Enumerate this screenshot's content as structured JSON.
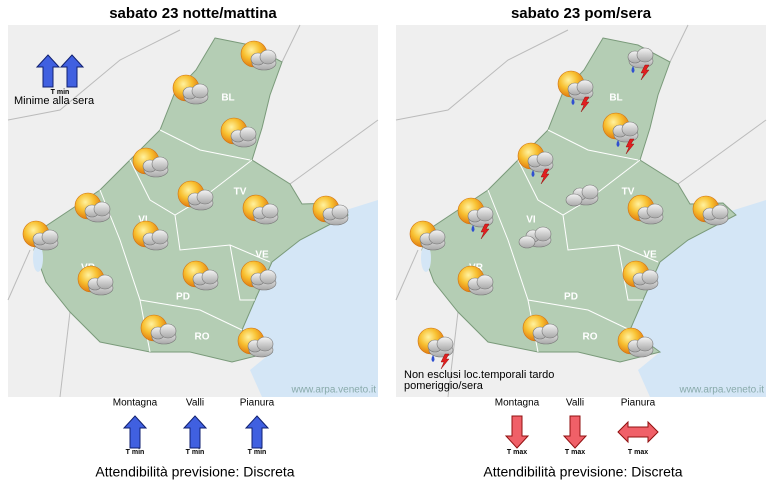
{
  "panels": [
    {
      "title": "sabato 23 notte/mattina",
      "provinces": [
        "BL",
        "TV",
        "VI",
        "VR",
        "PD",
        "VE",
        "RO"
      ],
      "legend": {
        "arrow_label": "T min",
        "note": "Minime alla sera"
      },
      "watermark": "www.arpa.veneto.it",
      "zones": [
        {
          "label": "Montagna",
          "arrow_label": "T min"
        },
        {
          "label": "Valli",
          "arrow_label": "T min"
        },
        {
          "label": "Pianura",
          "arrow_label": "T min"
        }
      ],
      "reliability": "Attendibilità previsione: Discreta"
    },
    {
      "title": "sabato 23 pom/sera",
      "provinces": [
        "BL",
        "TV",
        "VI",
        "VR",
        "PD",
        "VE",
        "RO"
      ],
      "note": [
        "Non esclusi loc.temporali tardo",
        "pomeriggio/sera"
      ],
      "watermark": "www.arpa.veneto.it",
      "zones": [
        {
          "label": "Montagna",
          "arrow_label": "T max"
        },
        {
          "label": "Valli",
          "arrow_label": "T max"
        },
        {
          "label": "Pianura",
          "arrow_label": "T max"
        }
      ],
      "reliability": "Attendibilità previsione: Discreta"
    }
  ]
}
